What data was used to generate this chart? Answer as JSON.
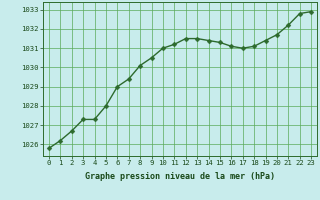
{
  "x": [
    0,
    1,
    2,
    3,
    4,
    5,
    6,
    7,
    8,
    9,
    10,
    11,
    12,
    13,
    14,
    15,
    16,
    17,
    18,
    19,
    20,
    21,
    22,
    23
  ],
  "y": [
    1025.8,
    1026.2,
    1026.7,
    1027.3,
    1027.3,
    1028.0,
    1029.0,
    1029.4,
    1030.1,
    1030.5,
    1031.0,
    1031.2,
    1031.5,
    1031.5,
    1031.4,
    1031.3,
    1031.1,
    1031.0,
    1031.1,
    1031.4,
    1031.7,
    1032.2,
    1032.8,
    1032.9
  ],
  "line_color": "#2d6a2d",
  "marker": "D",
  "marker_size": 2.5,
  "background_color": "#c8ecec",
  "grid_color": "#5aaa5a",
  "xlabel": "Graphe pression niveau de la mer (hPa)",
  "xlabel_color": "#1a4a1a",
  "tick_color": "#1a4a1a",
  "ylim": [
    1025.4,
    1033.4
  ],
  "yticks": [
    1026,
    1027,
    1028,
    1029,
    1030,
    1031,
    1032,
    1033
  ],
  "xtick_labels": [
    "0",
    "1",
    "2",
    "3",
    "4",
    "5",
    "6",
    "7",
    "8",
    "9",
    "10",
    "11",
    "12",
    "13",
    "14",
    "15",
    "16",
    "17",
    "18",
    "19",
    "20",
    "21",
    "22",
    "23"
  ],
  "spine_color": "#2d6a2d",
  "line_width": 1.0,
  "tick_fontsize": 5.2,
  "xlabel_fontsize": 6.0
}
